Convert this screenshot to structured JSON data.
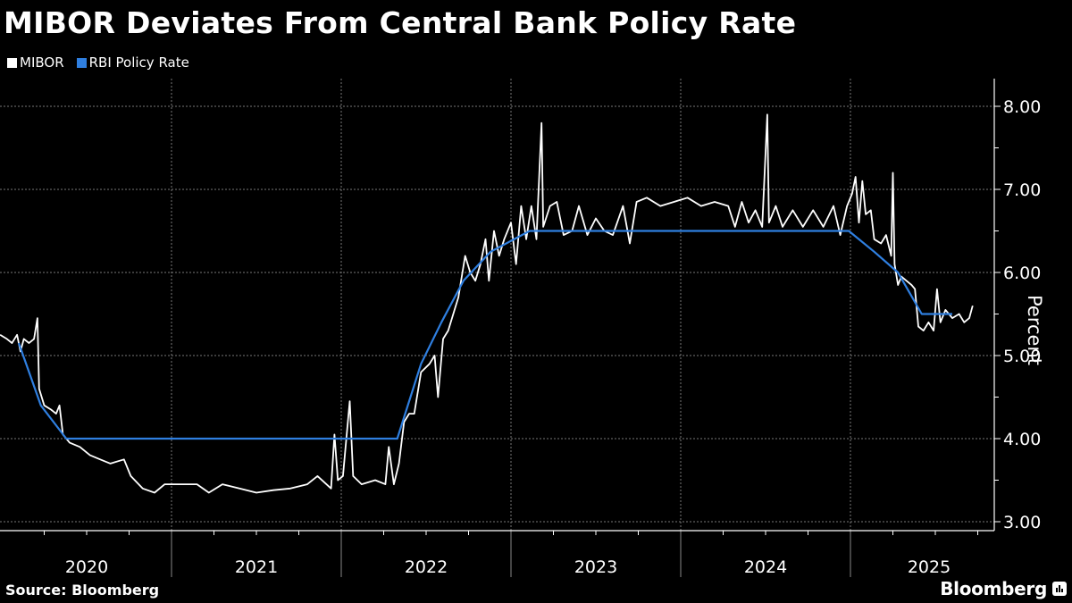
{
  "title": "MIBOR Deviates From Central Bank Policy Rate",
  "legend": [
    {
      "label": "MIBOR",
      "color": "#ffffff"
    },
    {
      "label": "RBI Policy Rate",
      "color": "#2f7fe0"
    }
  ],
  "source": "Source: Bloomberg",
  "brand": "Bloomberg",
  "chart_data": {
    "type": "line",
    "title": "MIBOR Deviates From Central Bank Policy Rate",
    "xlabel": "",
    "ylabel": "Percent",
    "ylim": [
      3.0,
      8.0
    ],
    "yticks": [
      "3.00",
      "4.00",
      "5.00",
      "6.00",
      "7.00",
      "8.00"
    ],
    "xticks": [
      "2020",
      "2021",
      "2022",
      "2023",
      "2024",
      "2025"
    ],
    "xlim": [
      2019.9,
      2025.8
    ],
    "grid": true,
    "legend_position": "top-left",
    "series": [
      {
        "name": "RBI Policy Rate",
        "color": "#2f7fe0",
        "points": [
          [
            2020.1,
            5.15
          ],
          [
            2020.23,
            4.4
          ],
          [
            2020.38,
            4.0
          ],
          [
            2022.33,
            4.0
          ],
          [
            2022.47,
            4.9
          ],
          [
            2022.59,
            5.4
          ],
          [
            2022.72,
            5.9
          ],
          [
            2022.88,
            6.25
          ],
          [
            2023.11,
            6.5
          ],
          [
            2024.99,
            6.5
          ],
          [
            2025.14,
            6.25
          ],
          [
            2025.28,
            6.0
          ],
          [
            2025.42,
            5.5
          ],
          [
            2025.6,
            5.5
          ]
        ]
      },
      {
        "name": "MIBOR",
        "color": "#ffffff",
        "points": [
          [
            2019.99,
            5.25
          ],
          [
            2020.03,
            5.2
          ],
          [
            2020.06,
            5.15
          ],
          [
            2020.09,
            5.25
          ],
          [
            2020.11,
            5.05
          ],
          [
            2020.13,
            5.2
          ],
          [
            2020.16,
            5.15
          ],
          [
            2020.19,
            5.2
          ],
          [
            2020.21,
            5.45
          ],
          [
            2020.22,
            4.6
          ],
          [
            2020.25,
            4.4
          ],
          [
            2020.29,
            4.35
          ],
          [
            2020.32,
            4.3
          ],
          [
            2020.34,
            4.4
          ],
          [
            2020.36,
            4.05
          ],
          [
            2020.4,
            3.95
          ],
          [
            2020.46,
            3.9
          ],
          [
            2020.52,
            3.8
          ],
          [
            2020.58,
            3.75
          ],
          [
            2020.64,
            3.7
          ],
          [
            2020.72,
            3.75
          ],
          [
            2020.76,
            3.55
          ],
          [
            2020.83,
            3.4
          ],
          [
            2020.9,
            3.35
          ],
          [
            2020.96,
            3.45
          ],
          [
            2021.05,
            3.45
          ],
          [
            2021.15,
            3.45
          ],
          [
            2021.22,
            3.35
          ],
          [
            2021.3,
            3.45
          ],
          [
            2021.4,
            3.4
          ],
          [
            2021.5,
            3.35
          ],
          [
            2021.6,
            3.38
          ],
          [
            2021.7,
            3.4
          ],
          [
            2021.8,
            3.45
          ],
          [
            2021.86,
            3.55
          ],
          [
            2021.94,
            3.4
          ],
          [
            2021.96,
            4.05
          ],
          [
            2021.98,
            3.5
          ],
          [
            2022.01,
            3.55
          ],
          [
            2022.05,
            4.45
          ],
          [
            2022.07,
            3.55
          ],
          [
            2022.12,
            3.45
          ],
          [
            2022.2,
            3.5
          ],
          [
            2022.26,
            3.45
          ],
          [
            2022.28,
            3.9
          ],
          [
            2022.31,
            3.45
          ],
          [
            2022.34,
            3.7
          ],
          [
            2022.37,
            4.2
          ],
          [
            2022.4,
            4.3
          ],
          [
            2022.43,
            4.3
          ],
          [
            2022.47,
            4.8
          ],
          [
            2022.52,
            4.9
          ],
          [
            2022.55,
            5.0
          ],
          [
            2022.57,
            4.5
          ],
          [
            2022.6,
            5.2
          ],
          [
            2022.63,
            5.3
          ],
          [
            2022.66,
            5.5
          ],
          [
            2022.69,
            5.7
          ],
          [
            2022.73,
            6.2
          ],
          [
            2022.76,
            6.0
          ],
          [
            2022.79,
            5.9
          ],
          [
            2022.82,
            6.1
          ],
          [
            2022.85,
            6.4
          ],
          [
            2022.87,
            5.9
          ],
          [
            2022.9,
            6.5
          ],
          [
            2022.93,
            6.2
          ],
          [
            2022.96,
            6.4
          ],
          [
            2023.0,
            6.6
          ],
          [
            2023.03,
            6.1
          ],
          [
            2023.06,
            6.8
          ],
          [
            2023.09,
            6.4
          ],
          [
            2023.12,
            6.8
          ],
          [
            2023.15,
            6.4
          ],
          [
            2023.18,
            7.8
          ],
          [
            2023.19,
            6.55
          ],
          [
            2023.23,
            6.8
          ],
          [
            2023.27,
            6.85
          ],
          [
            2023.31,
            6.45
          ],
          [
            2023.36,
            6.5
          ],
          [
            2023.4,
            6.8
          ],
          [
            2023.45,
            6.45
          ],
          [
            2023.5,
            6.65
          ],
          [
            2023.55,
            6.5
          ],
          [
            2023.6,
            6.45
          ],
          [
            2023.66,
            6.8
          ],
          [
            2023.7,
            6.35
          ],
          [
            2023.74,
            6.85
          ],
          [
            2023.8,
            6.9
          ],
          [
            2023.88,
            6.8
          ],
          [
            2023.96,
            6.85
          ],
          [
            2024.04,
            6.9
          ],
          [
            2024.12,
            6.8
          ],
          [
            2024.2,
            6.85
          ],
          [
            2024.28,
            6.8
          ],
          [
            2024.32,
            6.55
          ],
          [
            2024.36,
            6.85
          ],
          [
            2024.4,
            6.6
          ],
          [
            2024.44,
            6.75
          ],
          [
            2024.48,
            6.55
          ],
          [
            2024.51,
            7.9
          ],
          [
            2024.52,
            6.6
          ],
          [
            2024.56,
            6.8
          ],
          [
            2024.6,
            6.55
          ],
          [
            2024.66,
            6.75
          ],
          [
            2024.72,
            6.55
          ],
          [
            2024.78,
            6.75
          ],
          [
            2024.84,
            6.55
          ],
          [
            2024.9,
            6.8
          ],
          [
            2024.94,
            6.45
          ],
          [
            2024.98,
            6.8
          ],
          [
            2025.01,
            6.95
          ],
          [
            2025.03,
            7.15
          ],
          [
            2025.05,
            6.6
          ],
          [
            2025.07,
            7.1
          ],
          [
            2025.09,
            6.7
          ],
          [
            2025.12,
            6.75
          ],
          [
            2025.14,
            6.4
          ],
          [
            2025.18,
            6.35
          ],
          [
            2025.21,
            6.45
          ],
          [
            2025.24,
            6.2
          ],
          [
            2025.25,
            7.2
          ],
          [
            2025.26,
            6.1
          ],
          [
            2025.28,
            5.85
          ],
          [
            2025.3,
            5.95
          ],
          [
            2025.33,
            5.9
          ],
          [
            2025.36,
            5.85
          ],
          [
            2025.38,
            5.8
          ],
          [
            2025.4,
            5.35
          ],
          [
            2025.43,
            5.3
          ],
          [
            2025.46,
            5.4
          ],
          [
            2025.49,
            5.3
          ],
          [
            2025.51,
            5.8
          ],
          [
            2025.53,
            5.4
          ],
          [
            2025.56,
            5.55
          ],
          [
            2025.6,
            5.45
          ],
          [
            2025.64,
            5.5
          ],
          [
            2025.67,
            5.4
          ],
          [
            2025.7,
            5.45
          ],
          [
            2025.72,
            5.6
          ]
        ]
      }
    ]
  }
}
